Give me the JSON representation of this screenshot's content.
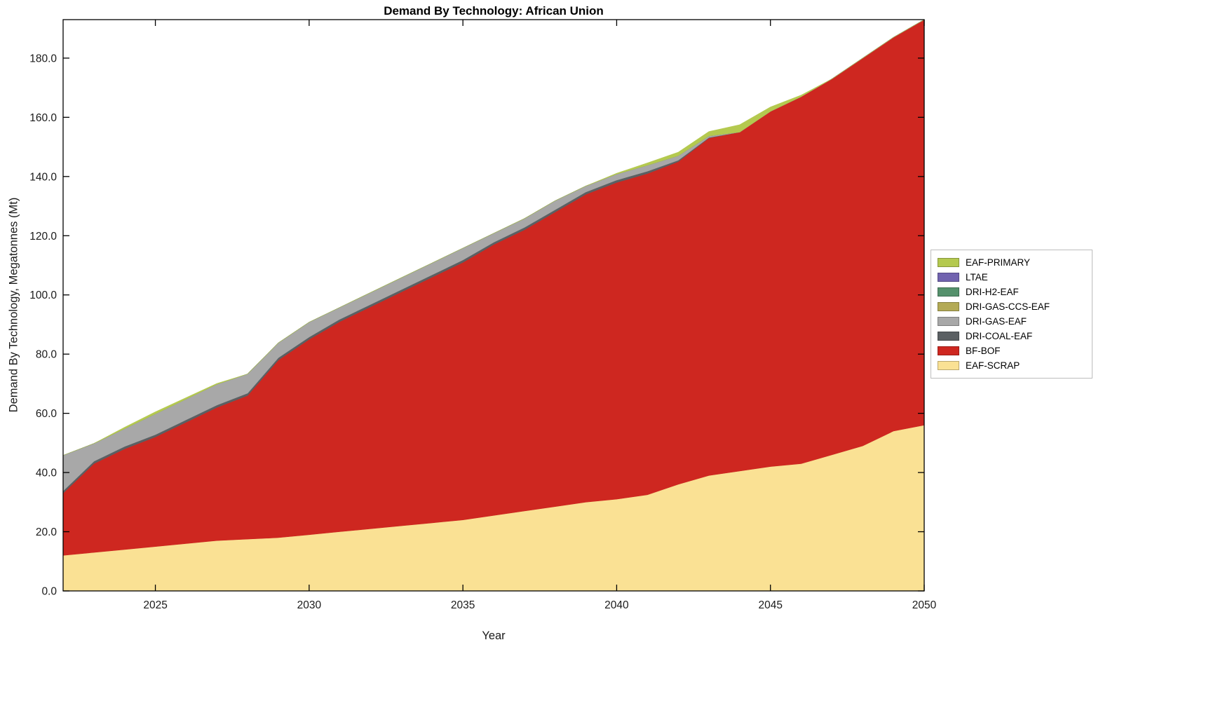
{
  "chart_data": {
    "type": "area",
    "stacked": true,
    "title": "Demand By Technology: African Union",
    "xlabel": "Year",
    "ylabel": "Demand By Technology, Megatonnes (Mt)",
    "grid": false,
    "legend_position": "right-outside",
    "xlim": [
      2022,
      2050
    ],
    "ylim": [
      0,
      193
    ],
    "xticks": [
      2025,
      2030,
      2035,
      2040,
      2045,
      2050
    ],
    "yticks": [
      0,
      20,
      40,
      60,
      80,
      100,
      120,
      140,
      160,
      180
    ],
    "ytick_format": "one-decimal",
    "x": [
      2022,
      2023,
      2024,
      2025,
      2026,
      2027,
      2028,
      2029,
      2030,
      2031,
      2032,
      2033,
      2034,
      2035,
      2036,
      2037,
      2038,
      2039,
      2040,
      2041,
      2042,
      2043,
      2044,
      2045,
      2046,
      2047,
      2048,
      2049,
      2050
    ],
    "legend_order_top_to_bottom": [
      "EAF-PRIMARY",
      "LTAE",
      "DRI-H2-EAF",
      "DRI-GAS-CCS-EAF",
      "DRI-GAS-EAF",
      "DRI-COAL-EAF",
      "BF-BOF",
      "EAF-SCRAP"
    ],
    "series": [
      {
        "name": "EAF-SCRAP",
        "color": "#fae194",
        "values": [
          12,
          13,
          14,
          15,
          16,
          17,
          17.5,
          18,
          19,
          20,
          21,
          22,
          23,
          24,
          25.5,
          27,
          28.5,
          30,
          31,
          32.5,
          36,
          39,
          40.5,
          42,
          43,
          46,
          49,
          54,
          56
        ]
      },
      {
        "name": "BF-BOF",
        "color": "#ce2720",
        "values": [
          21,
          30,
          34,
          37,
          41,
          45,
          48.5,
          60,
          66,
          71,
          75,
          79,
          83,
          87,
          91.5,
          95,
          99.5,
          104,
          107,
          108.5,
          109,
          114,
          114.5,
          120,
          124,
          127,
          131,
          133,
          137
        ]
      },
      {
        "name": "DRI-COAL-EAF",
        "color": "#5b6063",
        "values": [
          0.8,
          0.8,
          0.8,
          0.8,
          0.8,
          0.8,
          0.8,
          0.8,
          0.8,
          0.8,
          0.8,
          0.8,
          0.8,
          0.8,
          0.8,
          0.8,
          0.8,
          0.8,
          0.8,
          0.8,
          0.5,
          0.2,
          0,
          0,
          0,
          0,
          0,
          0,
          0
        ]
      },
      {
        "name": "DRI-GAS-EAF",
        "color": "#a8a8a8",
        "values": [
          12,
          6,
          6,
          7,
          7,
          7,
          6.5,
          5,
          5,
          4,
          4,
          4,
          4,
          4,
          3,
          3,
          3,
          2,
          2,
          2,
          1.5,
          0.5,
          0,
          0,
          0,
          0,
          0,
          0,
          0
        ]
      },
      {
        "name": "DRI-GAS-CCS-EAF",
        "color": "#b3aa55",
        "values": [
          0,
          0,
          0,
          0,
          0,
          0,
          0,
          0,
          0,
          0,
          0,
          0,
          0,
          0,
          0,
          0,
          0,
          0,
          0,
          0,
          0,
          0,
          0,
          0,
          0,
          0,
          0,
          0,
          0
        ]
      },
      {
        "name": "DRI-H2-EAF",
        "color": "#55916c",
        "values": [
          0,
          0,
          0,
          0,
          0,
          0,
          0,
          0,
          0,
          0,
          0,
          0,
          0,
          0,
          0,
          0,
          0,
          0,
          0,
          0,
          0,
          0,
          0,
          0,
          0,
          0,
          0,
          0,
          0
        ]
      },
      {
        "name": "LTAE",
        "color": "#7163af",
        "values": [
          0,
          0,
          0,
          0,
          0,
          0,
          0,
          0,
          0,
          0,
          0,
          0,
          0,
          0,
          0,
          0,
          0,
          0,
          0,
          0,
          0,
          0,
          0,
          0,
          0,
          0,
          0,
          0,
          0
        ]
      },
      {
        "name": "EAF-PRIMARY",
        "color": "#b4c94f",
        "values": [
          0,
          0,
          0.5,
          0.7,
          0.5,
          0.3,
          0,
          0,
          0,
          0,
          0,
          0,
          0,
          0,
          0,
          0,
          0,
          0,
          0.3,
          0.8,
          1.2,
          1.5,
          2.5,
          1.5,
          0.5,
          0,
          0,
          0,
          0
        ]
      }
    ]
  }
}
